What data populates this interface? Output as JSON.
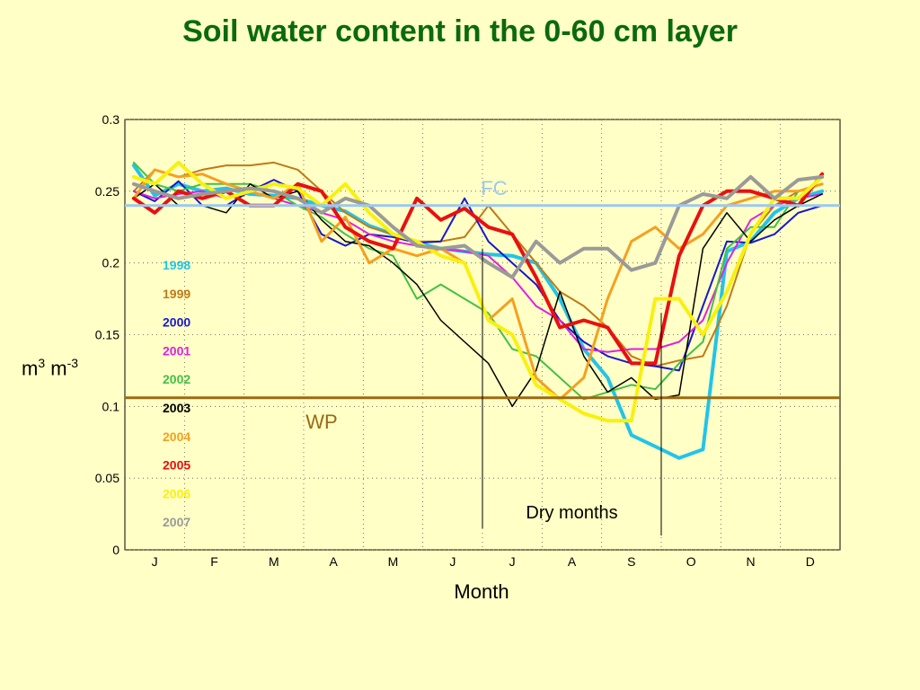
{
  "chart_data": {
    "type": "line",
    "title": "Soil water content in the 0-60 cm layer",
    "xlabel": "Month",
    "ylabel": {
      "base1": "m",
      "sup1": "3",
      "base2": " m",
      "sup2": "-3"
    },
    "ylim": [
      0,
      0.3
    ],
    "yticks": [
      "0",
      "0.05",
      "0.1",
      "0.15",
      "0.2",
      "0.25",
      "0.3"
    ],
    "x_months": [
      "J",
      "F",
      "M",
      "A",
      "M",
      "J",
      "J",
      "A",
      "S",
      "O",
      "N",
      "D"
    ],
    "xlim": [
      0,
      12
    ],
    "reference_lines": [
      {
        "label": "FC",
        "value": 0.24,
        "color": "#9cc8f0"
      },
      {
        "label": "WP",
        "value": 0.106,
        "color": "#9b6a12"
      }
    ],
    "annotation": {
      "text": "Dry months",
      "x_start": 6.0,
      "x_end": 9.0
    },
    "x": [
      0.15,
      0.5,
      0.9,
      1.3,
      1.7,
      2.1,
      2.5,
      2.9,
      3.3,
      3.7,
      4.1,
      4.5,
      4.9,
      5.3,
      5.7,
      6.1,
      6.5,
      6.9,
      7.3,
      7.7,
      8.1,
      8.5,
      8.9,
      9.3,
      9.7,
      10.1,
      10.5,
      10.9,
      11.3,
      11.7
    ],
    "series": [
      {
        "name": "1998",
        "color": "#22c4e8",
        "width": 4,
        "values": [
          0.268,
          0.247,
          0.255,
          0.25,
          0.252,
          0.248,
          0.247,
          0.245,
          0.24,
          0.236,
          0.226,
          0.22,
          0.214,
          0.21,
          0.208,
          0.206,
          0.205,
          0.2,
          0.175,
          0.14,
          0.12,
          0.08,
          0.072,
          0.064,
          0.07,
          0.208,
          0.215,
          0.235,
          0.245,
          0.25
        ]
      },
      {
        "name": "1999",
        "color": "#c07a18",
        "width": 2,
        "values": [
          0.25,
          0.265,
          0.26,
          0.265,
          0.268,
          0.268,
          0.27,
          0.265,
          0.25,
          0.235,
          0.225,
          0.22,
          0.215,
          0.215,
          0.218,
          0.24,
          0.22,
          0.2,
          0.18,
          0.17,
          0.155,
          0.135,
          0.128,
          0.132,
          0.135,
          0.17,
          0.22,
          0.24,
          0.25,
          0.255
        ]
      },
      {
        "name": "2000",
        "color": "#1818d0",
        "width": 2,
        "values": [
          0.25,
          0.243,
          0.257,
          0.24,
          0.24,
          0.25,
          0.258,
          0.25,
          0.22,
          0.212,
          0.22,
          0.218,
          0.214,
          0.215,
          0.245,
          0.215,
          0.2,
          0.185,
          0.16,
          0.145,
          0.135,
          0.13,
          0.128,
          0.125,
          0.17,
          0.215,
          0.214,
          0.22,
          0.235,
          0.24
        ]
      },
      {
        "name": "2001",
        "color": "#e020e0",
        "width": 2,
        "values": [
          0.25,
          0.245,
          0.248,
          0.25,
          0.245,
          0.25,
          0.245,
          0.24,
          0.235,
          0.23,
          0.22,
          0.215,
          0.212,
          0.21,
          0.208,
          0.205,
          0.19,
          0.17,
          0.16,
          0.14,
          0.138,
          0.14,
          0.14,
          0.145,
          0.16,
          0.2,
          0.23,
          0.24,
          0.245,
          0.248
        ]
      },
      {
        "name": "2002",
        "color": "#44c044",
        "width": 2,
        "values": [
          0.27,
          0.255,
          0.25,
          0.255,
          0.255,
          0.255,
          0.25,
          0.24,
          0.232,
          0.22,
          0.21,
          0.205,
          0.175,
          0.185,
          0.175,
          0.165,
          0.14,
          0.135,
          0.12,
          0.105,
          0.11,
          0.115,
          0.112,
          0.13,
          0.145,
          0.21,
          0.225,
          0.225,
          0.25,
          0.255
        ]
      },
      {
        "name": "2003",
        "color": "#000000",
        "width": 1.5,
        "values": [
          0.245,
          0.255,
          0.24,
          0.24,
          0.235,
          0.255,
          0.245,
          0.25,
          0.23,
          0.215,
          0.212,
          0.2,
          0.185,
          0.16,
          0.145,
          0.13,
          0.1,
          0.125,
          0.18,
          0.135,
          0.11,
          0.12,
          0.105,
          0.108,
          0.21,
          0.235,
          0.215,
          0.23,
          0.24,
          0.248
        ]
      },
      {
        "name": "2004",
        "color": "#f5a020",
        "width": 3,
        "values": [
          0.245,
          0.265,
          0.26,
          0.262,
          0.255,
          0.25,
          0.245,
          0.255,
          0.215,
          0.232,
          0.2,
          0.21,
          0.205,
          0.21,
          0.2,
          0.16,
          0.175,
          0.12,
          0.105,
          0.12,
          0.175,
          0.215,
          0.225,
          0.21,
          0.22,
          0.24,
          0.245,
          0.25,
          0.25,
          0.255
        ]
      },
      {
        "name": "2005",
        "color": "#e81010",
        "width": 4,
        "values": [
          0.245,
          0.235,
          0.25,
          0.245,
          0.25,
          0.24,
          0.24,
          0.255,
          0.25,
          0.225,
          0.215,
          0.21,
          0.245,
          0.23,
          0.238,
          0.225,
          0.22,
          0.19,
          0.155,
          0.16,
          0.155,
          0.13,
          0.13,
          0.205,
          0.24,
          0.25,
          0.25,
          0.245,
          0.24,
          0.262
        ]
      },
      {
        "name": "2006",
        "color": "#f8f010",
        "width": 4,
        "values": [
          0.26,
          0.255,
          0.27,
          0.255,
          0.245,
          0.25,
          0.255,
          0.252,
          0.24,
          0.255,
          0.235,
          0.22,
          0.215,
          0.205,
          0.2,
          0.16,
          0.15,
          0.115,
          0.105,
          0.095,
          0.09,
          0.09,
          0.175,
          0.175,
          0.15,
          0.18,
          0.22,
          0.245,
          0.245,
          0.26
        ]
      },
      {
        "name": "2007",
        "color": "#9a9a9a",
        "width": 4,
        "values": [
          0.255,
          0.25,
          0.245,
          0.248,
          0.25,
          0.252,
          0.25,
          0.245,
          0.235,
          0.245,
          0.24,
          0.225,
          0.212,
          0.21,
          0.212,
          0.2,
          0.19,
          0.215,
          0.2,
          0.21,
          0.21,
          0.195,
          0.2,
          0.24,
          0.248,
          0.245,
          0.26,
          0.245,
          0.258,
          0.26
        ]
      }
    ]
  }
}
